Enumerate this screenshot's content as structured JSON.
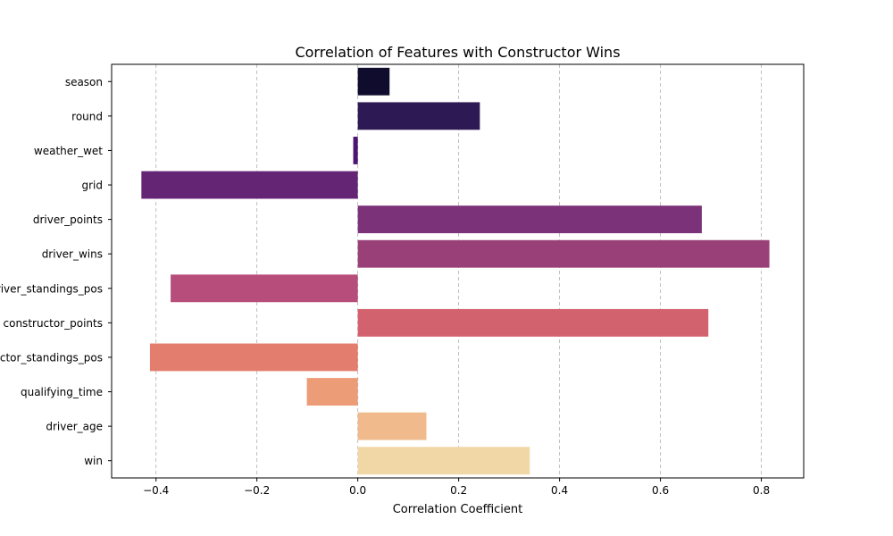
{
  "chart_data": {
    "type": "bar",
    "orientation": "horizontal",
    "title": "Correlation of Features with Constructor Wins",
    "xlabel": "Correlation Coefficient",
    "ylabel": "",
    "xlim": [
      -0.488,
      0.884
    ],
    "x_ticks": [
      -0.4,
      -0.2,
      0.0,
      0.2,
      0.4,
      0.6,
      0.8
    ],
    "x_tick_labels": [
      "−0.4",
      "−0.2",
      "0.0",
      "0.2",
      "0.4",
      "0.6",
      "0.8"
    ],
    "grid": "x-dashed",
    "categories": [
      "season",
      "round",
      "weather_wet",
      "grid",
      "driver_points",
      "driver_wins",
      "driver_standings_pos",
      "constructor_points",
      "constructor_standings_pos",
      "qualifying_time",
      "driver_age",
      "win"
    ],
    "values": [
      0.063,
      0.242,
      -0.009,
      -0.429,
      0.682,
      0.816,
      -0.371,
      0.695,
      -0.412,
      -0.101,
      0.136,
      0.341
    ],
    "colors": [
      "#100c2e",
      "#2d1a55",
      "#4a1670",
      "#642575",
      "#7b3278",
      "#9a4079",
      "#b74d7a",
      "#d3626f",
      "#e37d6e",
      "#ec9c77",
      "#f0ba8c",
      "#f2d7a6"
    ]
  }
}
